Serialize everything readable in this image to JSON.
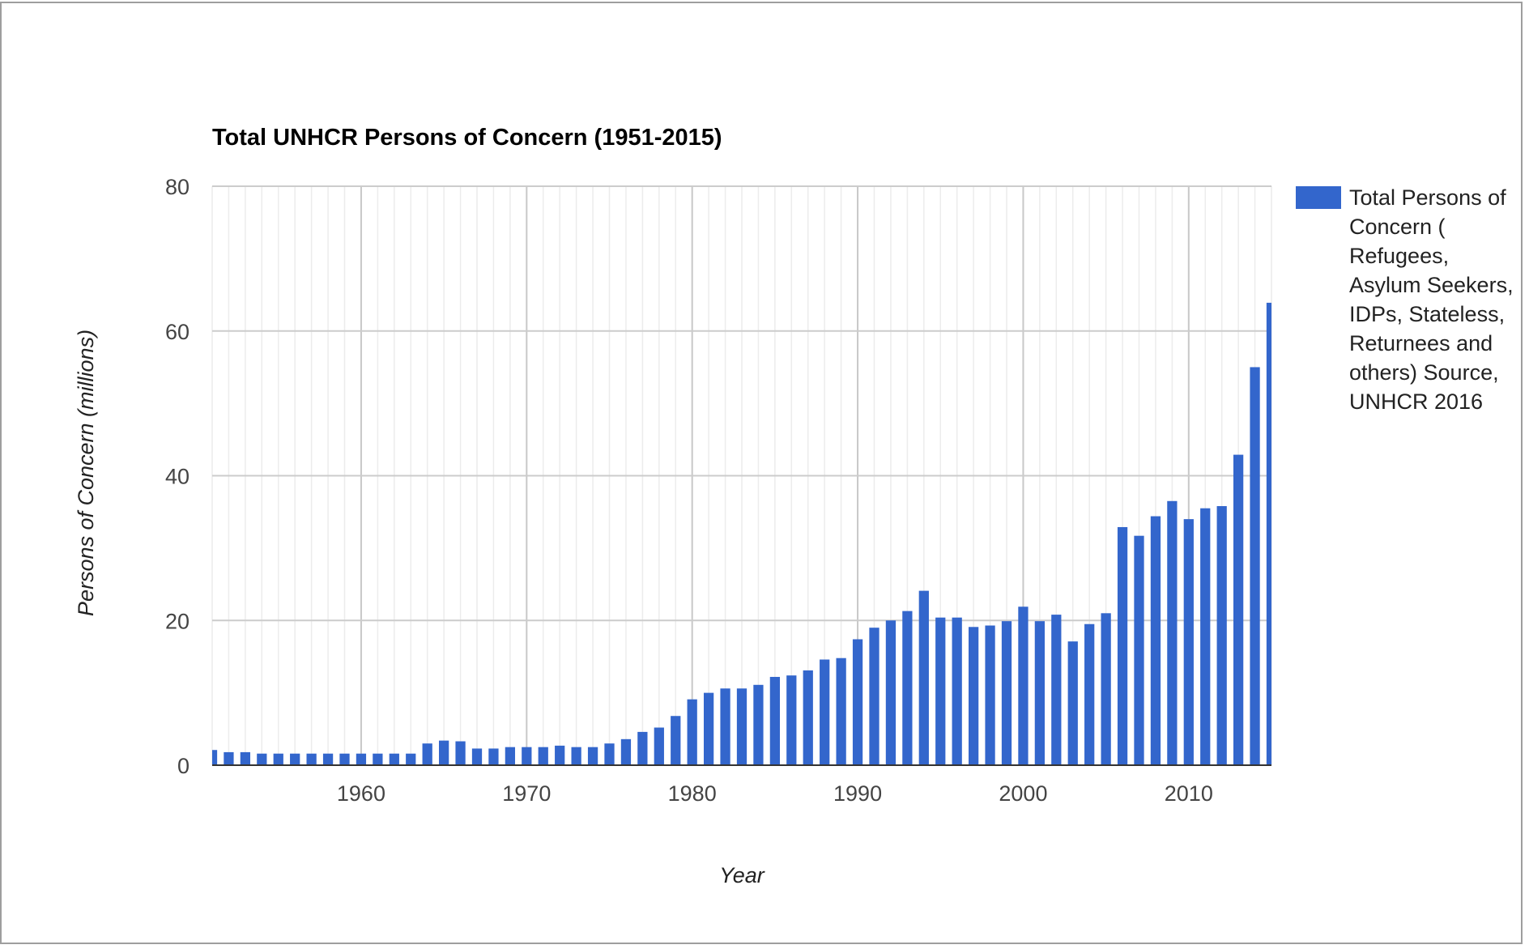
{
  "chart_data": {
    "type": "bar",
    "title": "Total UNHCR Persons of Concern (1951-2015)",
    "xlabel": "Year",
    "ylabel": "Persons of Concern (millions)",
    "ylim": [
      0,
      80
    ],
    "yticks": [
      0,
      20,
      40,
      60,
      80
    ],
    "xlim": [
      1951,
      2015
    ],
    "xticks": [
      1960,
      1970,
      1980,
      1990,
      2000,
      2010
    ],
    "grid": true,
    "legend_position": "right",
    "color": "#3366cc",
    "series": [
      {
        "name": "Total Persons of Concern ( Refugees, Asylum Seekers, IDPs, Stateless, Returnees and others) Source, UNHCR 2016",
        "x": [
          1951,
          1952,
          1953,
          1954,
          1955,
          1956,
          1957,
          1958,
          1959,
          1960,
          1961,
          1962,
          1963,
          1964,
          1965,
          1966,
          1967,
          1968,
          1969,
          1970,
          1971,
          1972,
          1973,
          1974,
          1975,
          1976,
          1977,
          1978,
          1979,
          1980,
          1981,
          1982,
          1983,
          1984,
          1985,
          1986,
          1987,
          1988,
          1989,
          1990,
          1991,
          1992,
          1993,
          1994,
          1995,
          1996,
          1997,
          1998,
          1999,
          2000,
          2001,
          2002,
          2003,
          2004,
          2005,
          2006,
          2007,
          2008,
          2009,
          2010,
          2011,
          2012,
          2013,
          2014,
          2015
        ],
        "values": [
          2.1,
          1.8,
          1.8,
          1.6,
          1.6,
          1.6,
          1.6,
          1.6,
          1.6,
          1.6,
          1.6,
          1.6,
          1.6,
          3.0,
          3.4,
          3.3,
          2.3,
          2.3,
          2.5,
          2.5,
          2.5,
          2.7,
          2.5,
          2.5,
          3.0,
          3.6,
          4.6,
          5.2,
          6.8,
          9.1,
          10.0,
          10.6,
          10.6,
          11.1,
          12.2,
          12.4,
          13.1,
          14.6,
          14.8,
          17.4,
          19.0,
          20.0,
          21.3,
          24.1,
          20.4,
          20.4,
          19.1,
          19.3,
          19.9,
          21.9,
          19.9,
          20.8,
          17.1,
          19.5,
          21.0,
          32.9,
          31.7,
          34.4,
          36.5,
          34.0,
          35.5,
          35.8,
          42.9,
          55.0,
          63.9
        ]
      }
    ]
  }
}
